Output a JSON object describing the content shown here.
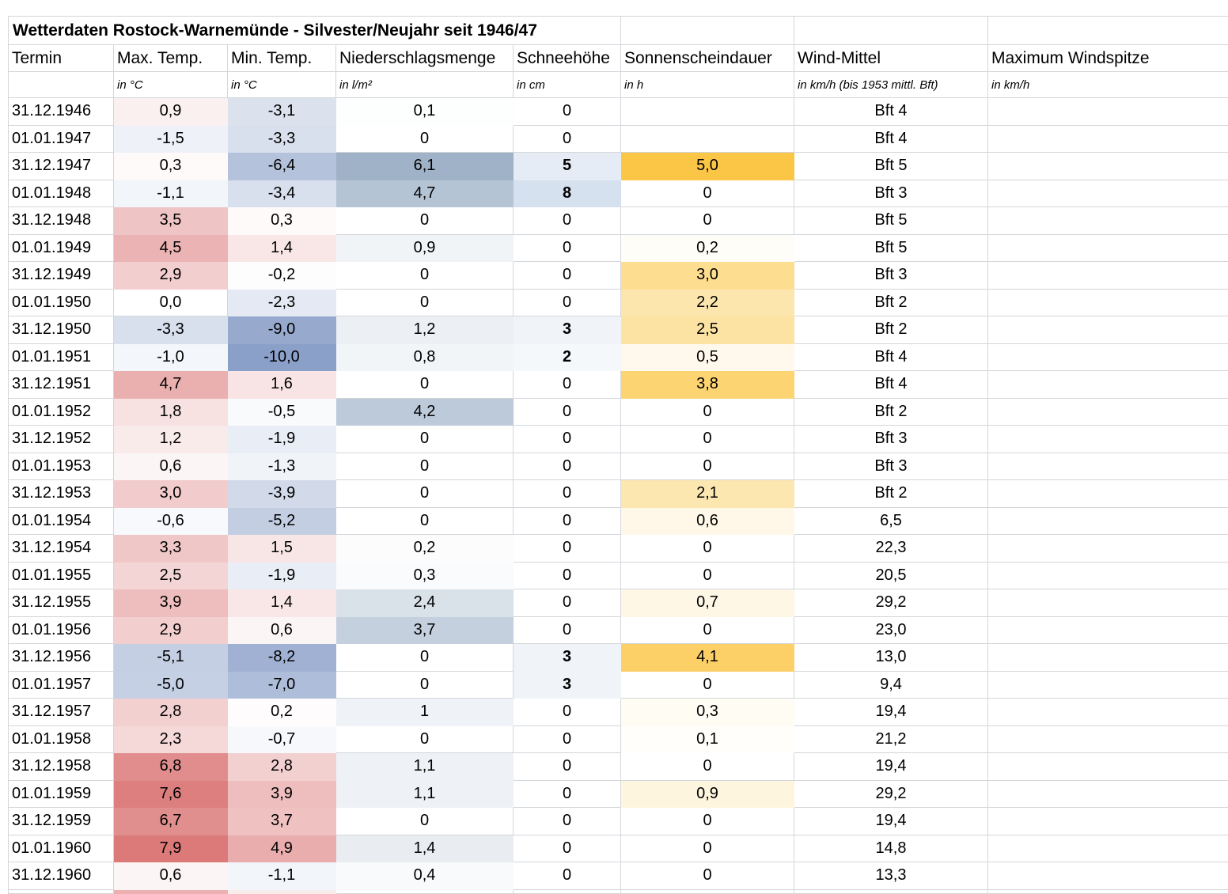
{
  "title": "Wetterdaten Rostock-Warnemünde - Silvester/Neujahr seit 1946/47",
  "columns": [
    {
      "key": "termin",
      "label": "Termin",
      "unit": ""
    },
    {
      "key": "max",
      "label": "Max. Temp.",
      "unit": "in °C"
    },
    {
      "key": "min",
      "label": "Min. Temp.",
      "unit": "in °C"
    },
    {
      "key": "nied",
      "label": "Niederschlagsmenge",
      "unit": "in l/m²"
    },
    {
      "key": "schnee",
      "label": "Schneehöhe",
      "unit": "in cm"
    },
    {
      "key": "sonne",
      "label": "Sonnenscheindauer",
      "unit": "in h"
    },
    {
      "key": "wind",
      "label": "Wind-Mittel",
      "unit": "in km/h (bis 1953 mittl. Bft)"
    },
    {
      "key": "spitze",
      "label": "Maximum Windspitze",
      "unit": "in km/h"
    }
  ],
  "rows": [
    {
      "termin": "31.12.1946",
      "max": "0,9",
      "min": "-3,1",
      "nied": "0,1",
      "schnee": "0",
      "sonne": "",
      "wind": "Bft 4",
      "spitze": ""
    },
    {
      "termin": "01.01.1947",
      "max": "-1,5",
      "min": "-3,3",
      "nied": "0",
      "schnee": "0",
      "sonne": "",
      "wind": "Bft 4",
      "spitze": ""
    },
    {
      "termin": "31.12.1947",
      "max": "0,3",
      "min": "-6,4",
      "nied": "6,1",
      "schnee": "5",
      "sonne": "5,0",
      "wind": "Bft 5",
      "spitze": ""
    },
    {
      "termin": "01.01.1948",
      "max": "-1,1",
      "min": "-3,4",
      "nied": "4,7",
      "schnee": "8",
      "sonne": "0",
      "wind": "Bft 3",
      "spitze": ""
    },
    {
      "termin": "31.12.1948",
      "max": "3,5",
      "min": "0,3",
      "nied": "0",
      "schnee": "0",
      "sonne": "0",
      "wind": "Bft 5",
      "spitze": ""
    },
    {
      "termin": "01.01.1949",
      "max": "4,5",
      "min": "1,4",
      "nied": "0,9",
      "schnee": "0",
      "sonne": "0,2",
      "wind": "Bft 5",
      "spitze": ""
    },
    {
      "termin": "31.12.1949",
      "max": "2,9",
      "min": "-0,2",
      "nied": "0",
      "schnee": "0",
      "sonne": "3,0",
      "wind": "Bft 3",
      "spitze": ""
    },
    {
      "termin": "01.01.1950",
      "max": "0,0",
      "min": "-2,3",
      "nied": "0",
      "schnee": "0",
      "sonne": "2,2",
      "wind": "Bft 2",
      "spitze": ""
    },
    {
      "termin": "31.12.1950",
      "max": "-3,3",
      "min": "-9,0",
      "nied": "1,2",
      "schnee": "3",
      "sonne": "2,5",
      "wind": "Bft 2",
      "spitze": ""
    },
    {
      "termin": "01.01.1951",
      "max": "-1,0",
      "min": "-10,0",
      "nied": "0,8",
      "schnee": "2",
      "sonne": "0,5",
      "wind": "Bft 4",
      "spitze": ""
    },
    {
      "termin": "31.12.1951",
      "max": "4,7",
      "min": "1,6",
      "nied": "0",
      "schnee": "0",
      "sonne": "3,8",
      "wind": "Bft 4",
      "spitze": ""
    },
    {
      "termin": "01.01.1952",
      "max": "1,8",
      "min": "-0,5",
      "nied": "4,2",
      "schnee": "0",
      "sonne": "0",
      "wind": "Bft 2",
      "spitze": ""
    },
    {
      "termin": "31.12.1952",
      "max": "1,2",
      "min": "-1,9",
      "nied": "0",
      "schnee": "0",
      "sonne": "0",
      "wind": "Bft 3",
      "spitze": ""
    },
    {
      "termin": "01.01.1953",
      "max": "0,6",
      "min": "-1,3",
      "nied": "0",
      "schnee": "0",
      "sonne": "0",
      "wind": "Bft 3",
      "spitze": ""
    },
    {
      "termin": "31.12.1953",
      "max": "3,0",
      "min": "-3,9",
      "nied": "0",
      "schnee": "0",
      "sonne": "2,1",
      "wind": "Bft 2",
      "spitze": ""
    },
    {
      "termin": "01.01.1954",
      "max": "-0,6",
      "min": "-5,2",
      "nied": "0",
      "schnee": "0",
      "sonne": "0,6",
      "wind": "6,5",
      "spitze": ""
    },
    {
      "termin": "31.12.1954",
      "max": "3,3",
      "min": "1,5",
      "nied": "0,2",
      "schnee": "0",
      "sonne": "0",
      "wind": "22,3",
      "spitze": ""
    },
    {
      "termin": "01.01.1955",
      "max": "2,5",
      "min": "-1,9",
      "nied": "0,3",
      "schnee": "0",
      "sonne": "0",
      "wind": "20,5",
      "spitze": ""
    },
    {
      "termin": "31.12.1955",
      "max": "3,9",
      "min": "1,4",
      "nied": "2,4",
      "schnee": "0",
      "sonne": "0,7",
      "wind": "29,2",
      "spitze": ""
    },
    {
      "termin": "01.01.1956",
      "max": "2,9",
      "min": "0,6",
      "nied": "3,7",
      "schnee": "0",
      "sonne": "0",
      "wind": "23,0",
      "spitze": ""
    },
    {
      "termin": "31.12.1956",
      "max": "-5,1",
      "min": "-8,2",
      "nied": "0",
      "schnee": "3",
      "sonne": "4,1",
      "wind": "13,0",
      "spitze": ""
    },
    {
      "termin": "01.01.1957",
      "max": "-5,0",
      "min": "-7,0",
      "nied": "0",
      "schnee": "3",
      "sonne": "0",
      "wind": "9,4",
      "spitze": ""
    },
    {
      "termin": "31.12.1957",
      "max": "2,8",
      "min": "0,2",
      "nied": "1",
      "schnee": "0",
      "sonne": "0,3",
      "wind": "19,4",
      "spitze": ""
    },
    {
      "termin": "01.01.1958",
      "max": "2,3",
      "min": "-0,7",
      "nied": "0",
      "schnee": "0",
      "sonne": "0,1",
      "wind": "21,2",
      "spitze": ""
    },
    {
      "termin": "31.12.1958",
      "max": "6,8",
      "min": "2,8",
      "nied": "1,1",
      "schnee": "0",
      "sonne": "0",
      "wind": "19,4",
      "spitze": ""
    },
    {
      "termin": "01.01.1959",
      "max": "7,6",
      "min": "3,9",
      "nied": "1,1",
      "schnee": "0",
      "sonne": "0,9",
      "wind": "29,2",
      "spitze": ""
    },
    {
      "termin": "31.12.1959",
      "max": "6,7",
      "min": "3,7",
      "nied": "0",
      "schnee": "0",
      "sonne": "0",
      "wind": "19,4",
      "spitze": ""
    },
    {
      "termin": "01.01.1960",
      "max": "7,9",
      "min": "4,9",
      "nied": "1,4",
      "schnee": "0",
      "sonne": "0",
      "wind": "14,8",
      "spitze": ""
    },
    {
      "termin": "31.12.1960",
      "max": "0,6",
      "min": "-1,1",
      "nied": "0,4",
      "schnee": "0",
      "sonne": "0",
      "wind": "13,3",
      "spitze": ""
    }
  ],
  "scales": {
    "max": {
      "type": "diverging",
      "pos": "#dc7a7a",
      "neg": "#8ba0c9",
      "posMax": 7.9,
      "negMin": -10
    },
    "min": {
      "type": "diverging",
      "pos": "#dc7a7a",
      "neg": "#8ba0c9",
      "posMax": 7.9,
      "negMin": -10
    },
    "nied": {
      "type": "linear",
      "color": "#9fb2c8",
      "max": 6.1
    },
    "schnee": {
      "type": "linear",
      "color": "#d6e1f0",
      "max": 8
    },
    "sonne": {
      "type": "linear",
      "color": "#fbc646",
      "max": 5
    }
  },
  "partial_row_fills": {
    "max": "#edb0b0",
    "min": "#fbecec"
  },
  "colors": {
    "gridline": "#d3d6da",
    "sun_gold": "#fbc646",
    "temp_red": "#dc7a7a",
    "temp_blue": "#8ba0c9",
    "precip_blue": "#9fb2c8",
    "snow_blue": "#d6e1f0"
  }
}
